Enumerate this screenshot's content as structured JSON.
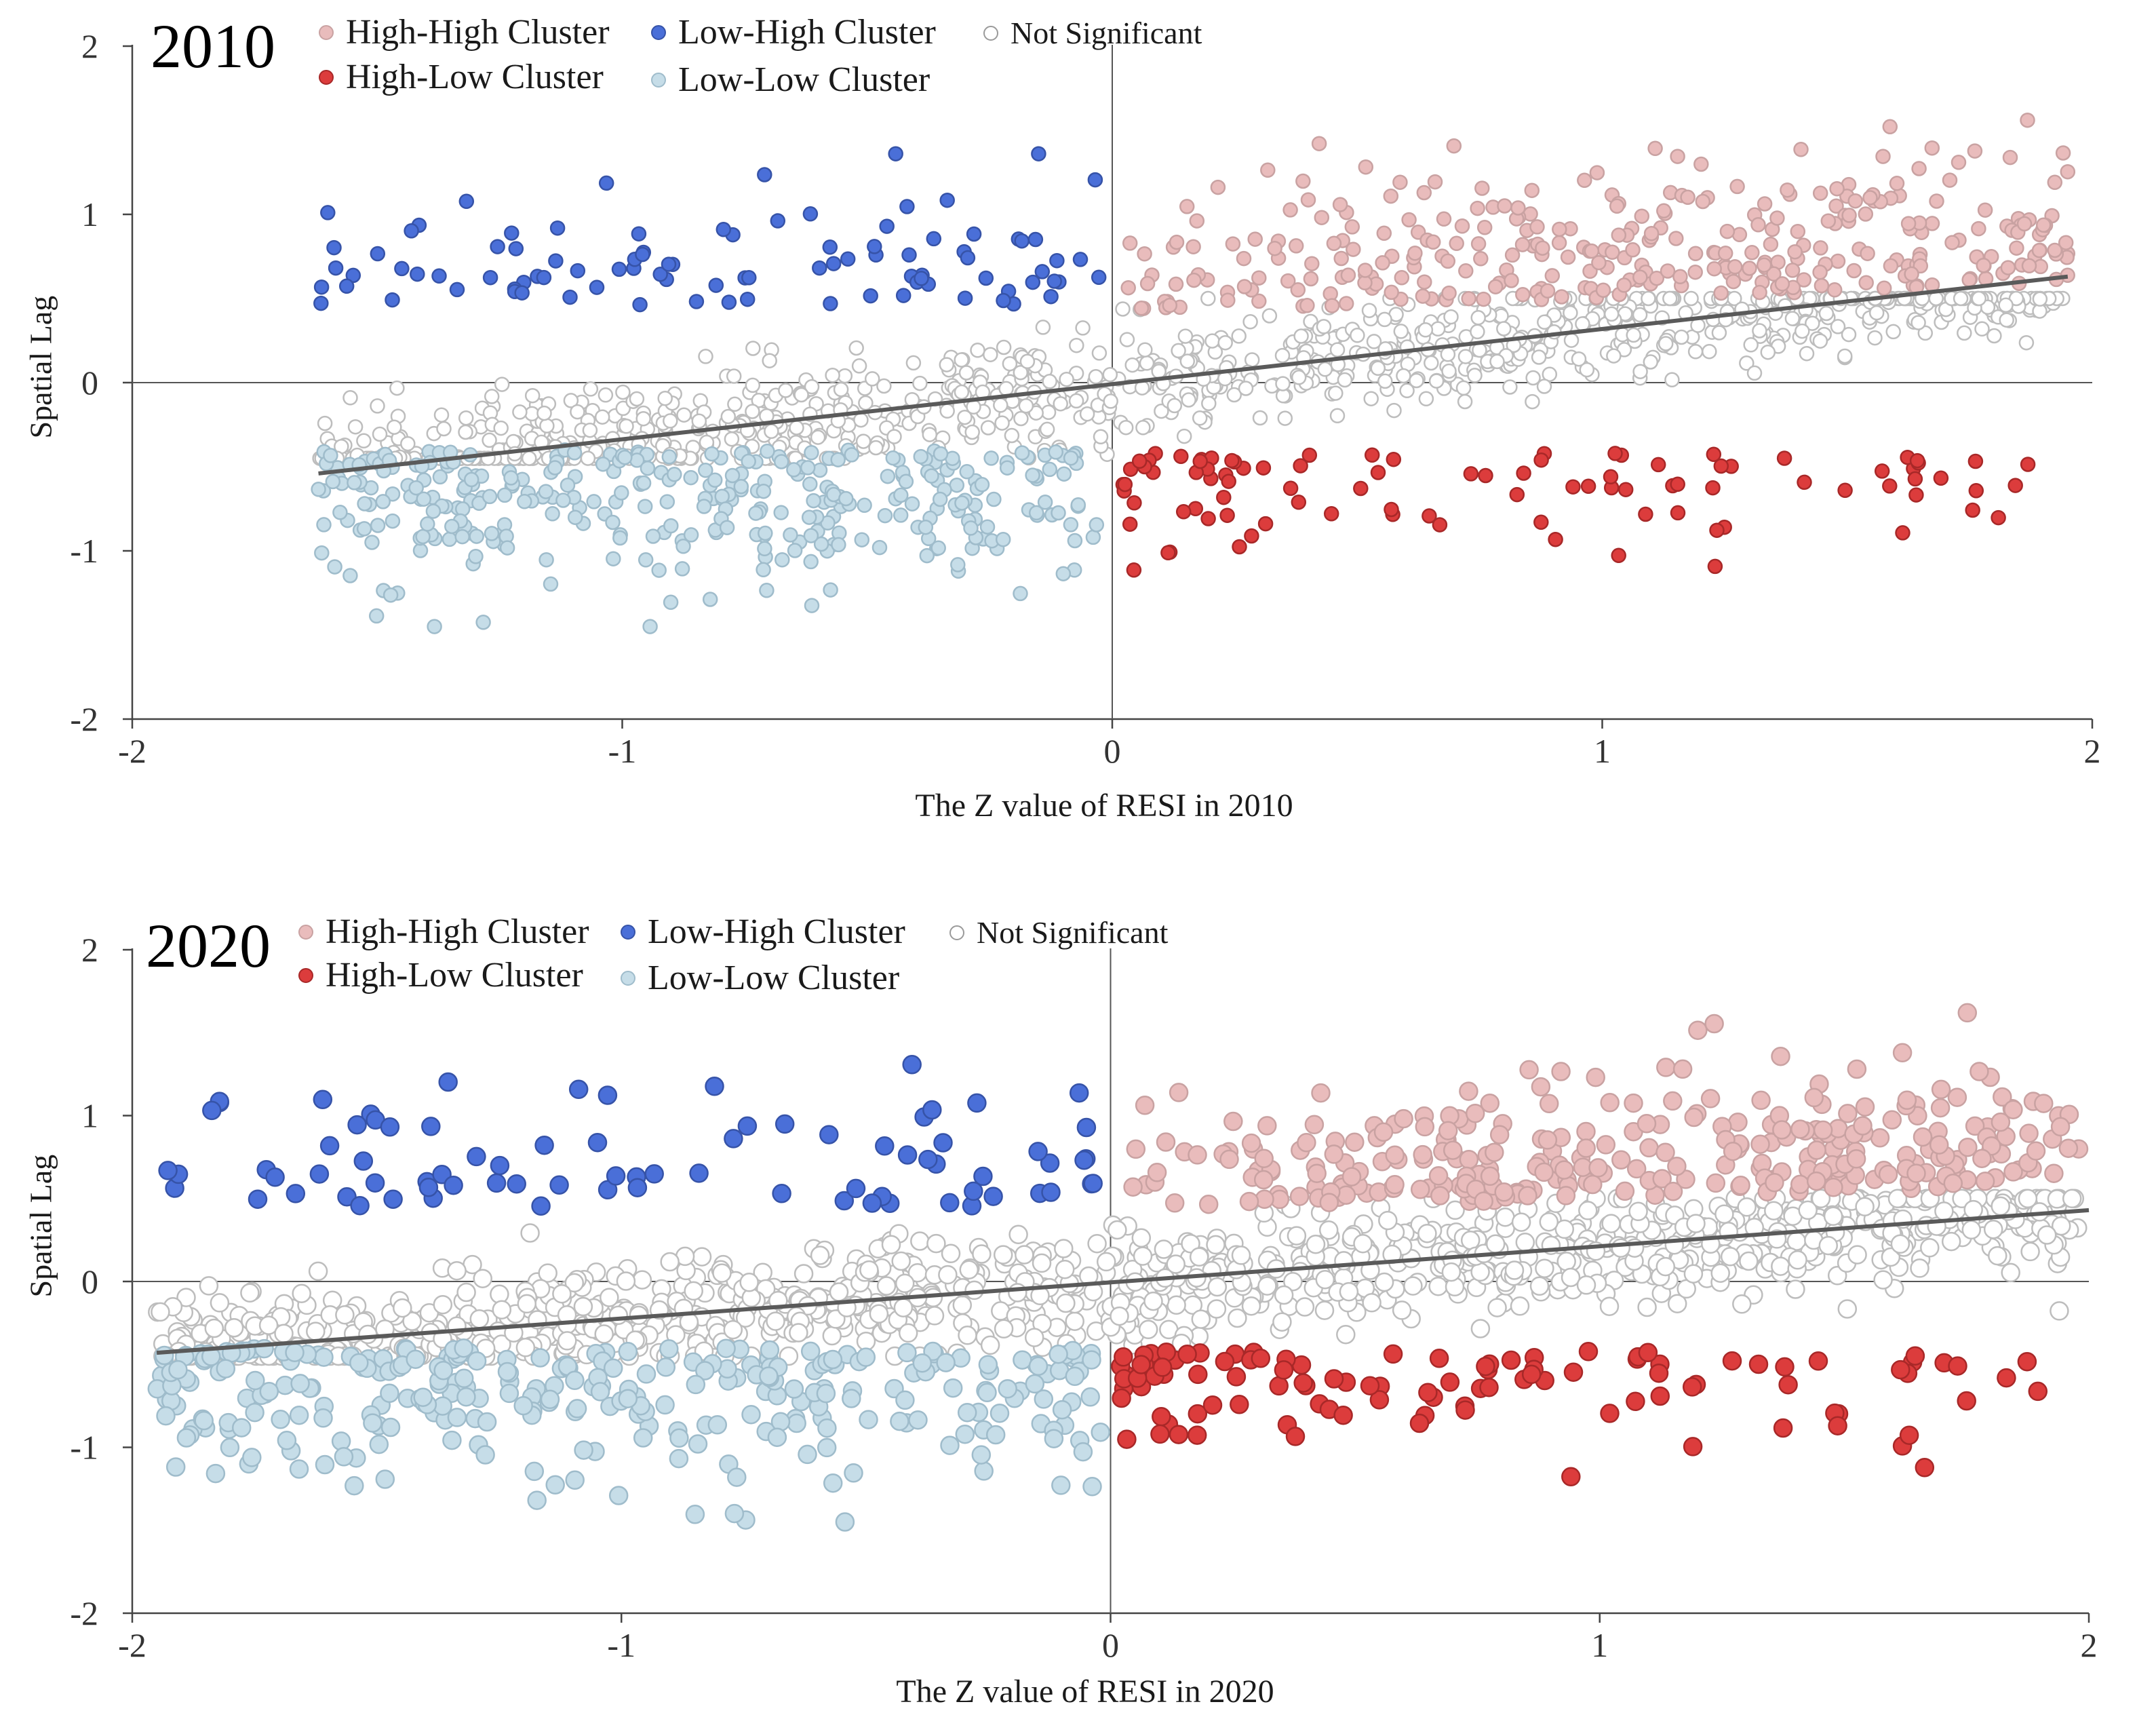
{
  "legend": {
    "hh": "High-High Cluster",
    "lh": "Low-High Cluster",
    "ns": "Not Significant",
    "hl": "High-Low Cluster",
    "ll": "Low-Low Cluster"
  },
  "colors": {
    "hh": "#e9bcbc",
    "lh": "#4a6fd8",
    "ns": "#ffffff",
    "hl": "#dc3c3c",
    "ll": "#c6dde8",
    "ns_stroke": "#bdbdbd",
    "trend": "#5a5a5a",
    "axis": "#555555"
  },
  "chart_data": [
    {
      "type": "scatter",
      "title": "2010",
      "xlabel": "The Z value of RESI in 2010",
      "ylabel": "Spatial  Lag",
      "xlim": [
        -2,
        2
      ],
      "ylim": [
        -2,
        2
      ],
      "x_ticks": [
        "-2",
        "-1",
        "0",
        "1",
        "2"
      ],
      "y_ticks": [
        "2",
        "1",
        "0",
        "-1",
        "-2"
      ],
      "x_range_data": [
        -1.62,
        1.95
      ],
      "trendline": {
        "x": [
          -1.62,
          1.95
        ],
        "y": [
          -0.54,
          0.63
        ]
      },
      "series_counts": {
        "High-High Cluster": 330,
        "Low-High Cluster": 95,
        "Not Significant": 1000,
        "High-Low Cluster": 95,
        "Low-Low Cluster": 345
      }
    },
    {
      "type": "scatter",
      "title": "2020",
      "xlabel": "The Z value of RESI in 2020",
      "ylabel": "Spatial  Lag",
      "xlim": [
        -2,
        2
      ],
      "ylim": [
        -2,
        2
      ],
      "x_ticks": [
        "-2",
        "-1",
        "0",
        "1",
        "2"
      ],
      "y_ticks": [
        "2",
        "1",
        "0",
        "-1",
        "-2"
      ],
      "x_range_data": [
        -1.95,
        1.98
      ],
      "trendline": {
        "x": [
          -1.95,
          2.0
        ],
        "y": [
          -0.43,
          0.43
        ]
      },
      "series_counts": {
        "High-High Cluster": 290,
        "Low-High Cluster": 80,
        "Not Significant": 1100,
        "High-Low Cluster": 110,
        "Low-Low Cluster": 300
      }
    }
  ]
}
